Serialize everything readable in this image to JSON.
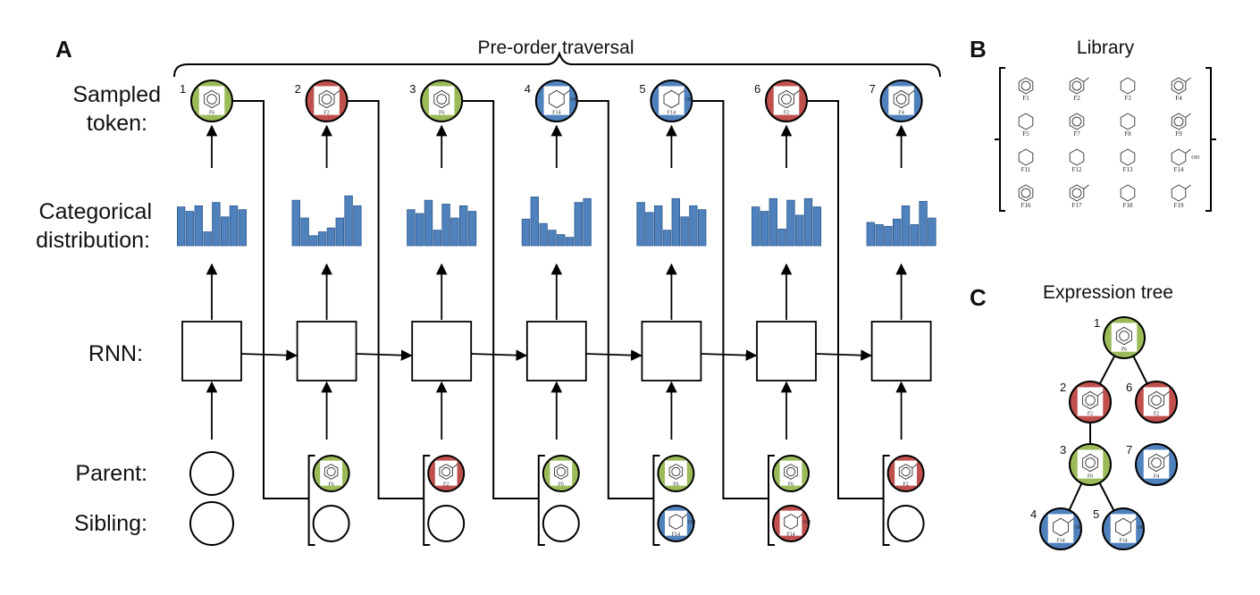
{
  "panels": {
    "a": "A",
    "b": "B",
    "c": "C"
  },
  "panel_a": {
    "title": "Pre-order traversal",
    "rows": {
      "sampled_1": "Sampled",
      "sampled_2": "token:",
      "categorical_1": "Categorical",
      "categorical_2": "distribution:",
      "rnn": "RNN:",
      "parent": "Parent:",
      "sibling": "Sibling:"
    },
    "steps": [
      {
        "num": "1",
        "token": "green",
        "token_mol": "benzene",
        "token_tag": "F6",
        "bars": [
          0.7,
          0.62,
          0.72,
          0.25,
          0.78,
          0.52,
          0.72,
          0.65
        ],
        "parent": null,
        "sibling": null
      },
      {
        "num": "2",
        "token": "red",
        "token_mol": "toluene",
        "token_tag": "F2",
        "bars": [
          0.82,
          0.5,
          0.18,
          0.25,
          0.32,
          0.5,
          0.9,
          0.72
        ],
        "parent": {
          "color": "green",
          "mol": "benzene",
          "tag": "F6"
        },
        "sibling": null
      },
      {
        "num": "3",
        "token": "green",
        "token_mol": "benzene",
        "token_tag": "F6",
        "bars": [
          0.65,
          0.58,
          0.82,
          0.28,
          0.75,
          0.5,
          0.72,
          0.62
        ],
        "parent": {
          "color": "red",
          "mol": "toluene",
          "tag": "F2"
        },
        "sibling": null
      },
      {
        "num": "4",
        "token": "blue",
        "token_mol": "cyclohexanol",
        "token_tag": "F14",
        "bars": [
          0.48,
          0.88,
          0.4,
          0.28,
          0.2,
          0.15,
          0.78,
          0.85
        ],
        "parent": {
          "color": "green",
          "mol": "benzene",
          "tag": "F6"
        },
        "sibling": null
      },
      {
        "num": "5",
        "token": "blue",
        "token_mol": "cyclohexanol",
        "token_tag": "F14",
        "bars": [
          0.78,
          0.6,
          0.72,
          0.28,
          0.85,
          0.52,
          0.72,
          0.65
        ],
        "parent": {
          "color": "green",
          "mol": "benzene",
          "tag": "F6"
        },
        "sibling": {
          "color": "blue",
          "mol": "cyclohexanol",
          "tag": "F14"
        }
      },
      {
        "num": "6",
        "token": "red",
        "token_mol": "toluene",
        "token_tag": "F2",
        "bars": [
          0.7,
          0.62,
          0.85,
          0.3,
          0.82,
          0.55,
          0.85,
          0.7
        ],
        "parent": {
          "color": "green",
          "mol": "benzene",
          "tag": "F6"
        },
        "sibling": {
          "color": "red",
          "mol": "cyclohexanol",
          "tag": "F14"
        }
      },
      {
        "num": "7",
        "token": "blue",
        "token_mol": "toluene",
        "token_tag": "F4",
        "bars": [
          0.42,
          0.38,
          0.35,
          0.48,
          0.72,
          0.38,
          0.8,
          0.5
        ],
        "parent": {
          "color": "red",
          "mol": "toluene",
          "tag": "F2"
        },
        "sibling": null
      }
    ]
  },
  "panel_b": {
    "title": "Library",
    "items": [
      {
        "tag": "F1",
        "mol": "benzene"
      },
      {
        "tag": "F2",
        "mol": "toluene"
      },
      {
        "tag": "F3",
        "mol": "methoxy-pyridine"
      },
      {
        "tag": "F4",
        "mol": "fluoro-toluene"
      },
      {
        "tag": "F5",
        "mol": "amide"
      },
      {
        "tag": "F7",
        "mol": "benzamide"
      },
      {
        "tag": "F8",
        "mol": "oxazole"
      },
      {
        "tag": "F9",
        "mol": "aniline"
      },
      {
        "tag": "F11",
        "mol": "imidazole"
      },
      {
        "tag": "F12",
        "mol": "pyrrolidine"
      },
      {
        "tag": "F13",
        "mol": "piperidine"
      },
      {
        "tag": "F14",
        "mol": "cyclohexanol"
      },
      {
        "tag": "F16",
        "mol": "pyridine"
      },
      {
        "tag": "F17",
        "mol": "phenol"
      },
      {
        "tag": "F18",
        "mol": "pyrazole"
      },
      {
        "tag": "F19",
        "mol": "cyclohexanone"
      }
    ]
  },
  "panel_c": {
    "title": "Expression tree",
    "nodes": [
      {
        "num": "1",
        "color": "green",
        "mol": "benzene",
        "tag": "F6"
      },
      {
        "num": "2",
        "color": "red",
        "mol": "toluene",
        "tag": "F2"
      },
      {
        "num": "6",
        "color": "red",
        "mol": "toluene",
        "tag": "F2"
      },
      {
        "num": "3",
        "color": "green",
        "mol": "benzene",
        "tag": "F6"
      },
      {
        "num": "7",
        "color": "blue",
        "mol": "toluene",
        "tag": "F4"
      },
      {
        "num": "4",
        "color": "blue",
        "mol": "cyclohexanol",
        "tag": "F14"
      },
      {
        "num": "5",
        "color": "blue",
        "mol": "cyclohexanol",
        "tag": "F14"
      }
    ]
  },
  "colors": {
    "green": "#9bbb59",
    "red": "#c0504d",
    "blue": "#4f81bd",
    "bar": "#4f81bd",
    "bar_edge": "#2e5a8e"
  }
}
